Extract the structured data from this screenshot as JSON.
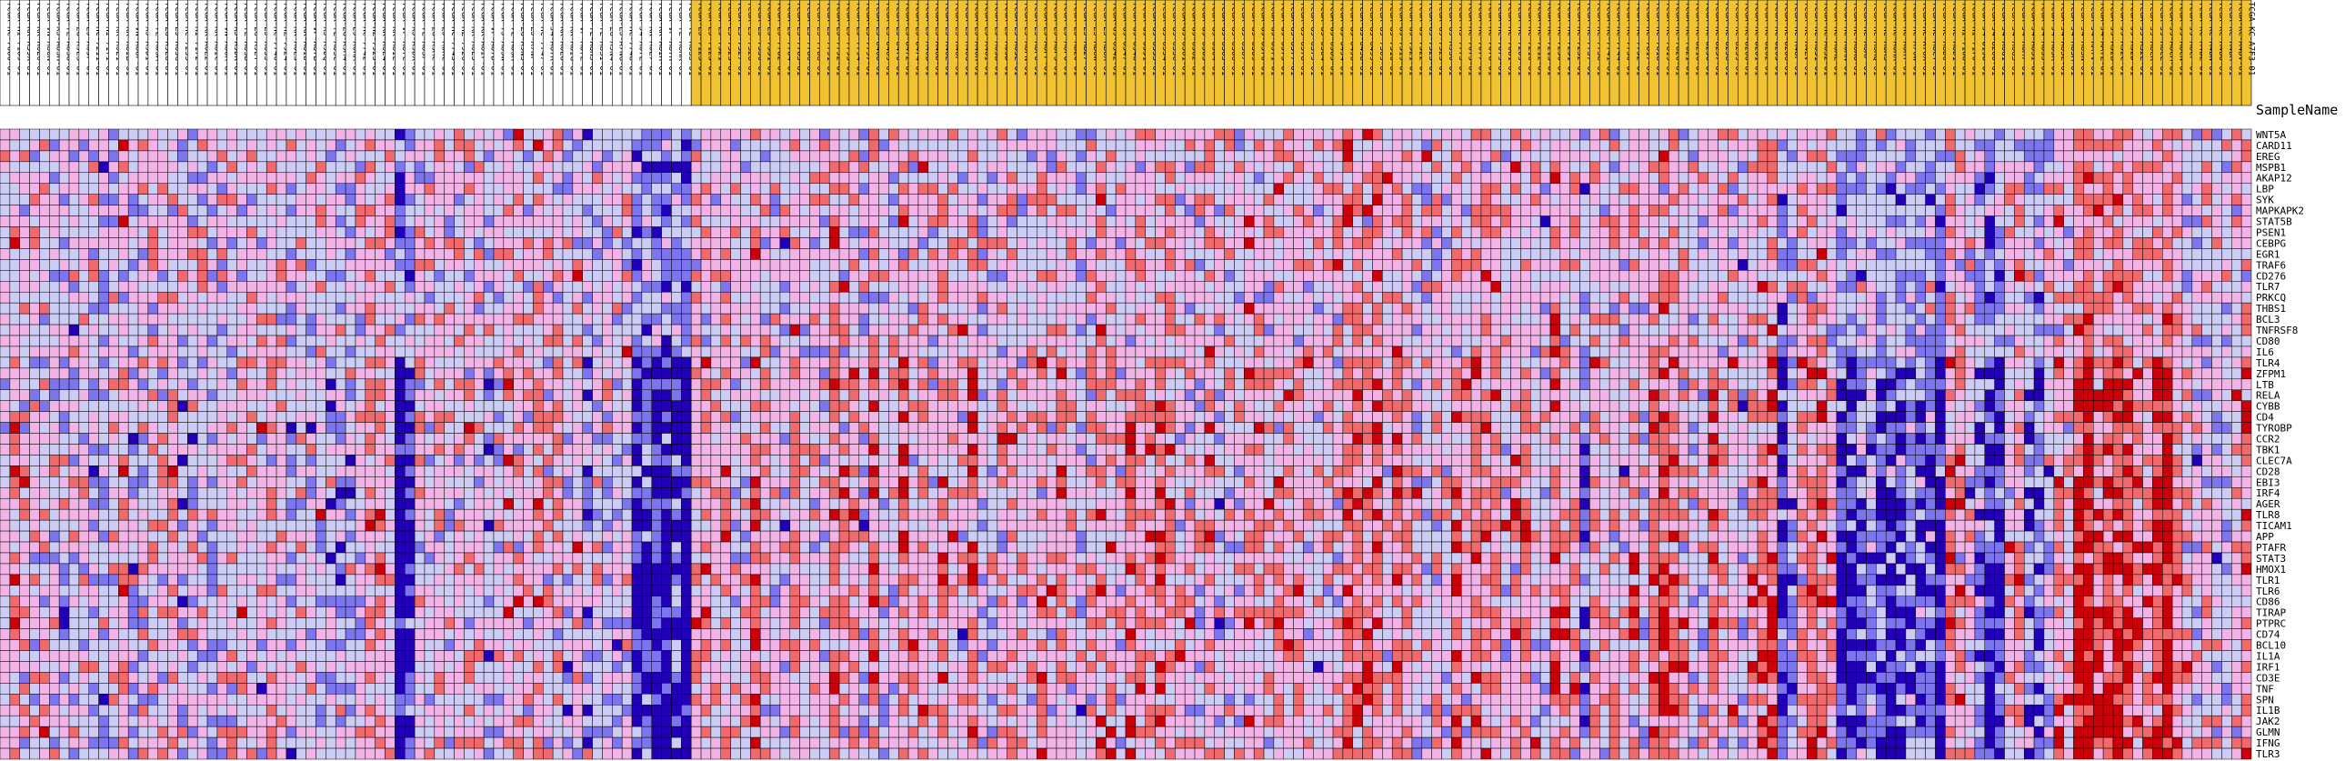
{
  "colors": {
    "header_even": "#ffffff",
    "header_odd": "#f1c232",
    "cell_border": "#000000",
    "scale": [
      "#2200b8",
      "#7c75ee",
      "#ccccf5",
      "#f2b3e6",
      "#f0696c",
      "#cc0008"
    ]
  },
  "column_header_label": "SampleName",
  "chart_data": {
    "type": "heatmap",
    "rows": [
      "WNT5A",
      "CARD11",
      "EREG",
      "MSPB1",
      "AKAP12",
      "LBP",
      "SYK",
      "MAPKAPK2",
      "STAT5B",
      "PSEN1",
      "CEBPG",
      "EGR1",
      "TRAF6",
      "CD276",
      "TLR7",
      "PRKCQ",
      "THBS1",
      "BCL3",
      "TNFRSF8",
      "CD80",
      "IL6",
      "TLR4",
      "ZFPM1",
      "LTB",
      "RELA",
      "CYBB",
      "CD4",
      "TYROBP",
      "CCR2",
      "TBK1",
      "CLEC7A",
      "CD28",
      "EBI3",
      "IRF4",
      "AGER",
      "TLR8",
      "TICAM1",
      "APP",
      "PTAFR",
      "STAT3",
      "HMOX1",
      "TLR1",
      "TLR6",
      "CD86",
      "TIRAP",
      "PTPRC",
      "CD74",
      "BCL10",
      "IL1A",
      "IRF1",
      "CD3E",
      "TNF",
      "SPN",
      "IL1B",
      "JAK2",
      "GLMN",
      "IFNG",
      "TLR3"
    ],
    "columns": [
      "TCGA-HC-7080-01",
      "TCGA-HI-7169-01",
      "TCGA-KK-A59X-01",
      "TCGA-KK-A6E0-01",
      "TCGA-VN-A88N-01",
      "TCGA-XJ-A83H-01",
      "TCGA-YL-A8S8-01",
      "TCGA-ZG-A9LS-01",
      "TCGA-EJ-A65F-01",
      "TCGA-HC-7211-01",
      "TCGA-HI-7171-01",
      "TCGA-KK-A6E1-01",
      "TCGA-KK-A8IB-01",
      "TCGA-VN-A88P-01",
      "TCGA-XJ-A9DI-01",
      "TCGA-YL-A8SA-01",
      "TCGA-ZG-A9LU-01",
      "TCGA-EJ-A65G-01",
      "TCGA-HC-7233-01",
      "TCGA-HI-7172-01",
      "TCGA-KK-A6E2-01",
      "TCGA-KK-A8IC-01",
      "TCGA-VN-A88R-01",
      "TCGA-XJ-A9DK-01",
      "TCGA-YL-A8SB-01",
      "TCGA-ZG-A9LY-01",
      "TCGA-EJ-A65J-01",
      "TCGA-HC-7740-01",
      "TCGA-HZ-7924-01",
      "TCGA-KK-A6E3-01",
      "TCGA-KK-A8ID-01",
      "TCGA-VP-A87B-01",
      "TCGA-XJ-A9DQ-01",
      "TCGA-YL-A8SC-01",
      "TCGA-ZG-A9M4-01",
      "TCGA-EJ-A6RA-01",
      "TCGA-HC-7742-01",
      "TCGA-HZ-7925-01",
      "TCGA-KK-A6E4-01",
      "TCGA-KK-A8IE-01",
      "TCGA-VP-A87C-01",
      "TCGA-XJ-A9DX-01",
      "TCGA-YL-A8SF-01",
      "TCGA-ZG-A9MC-01",
      "TCGA-EJ-A6RC-01",
      "TCGA-HC-7745-01",
      "TCGA-HZ-7926-01",
      "TCGA-KK-A6E5-01",
      "TCGA-KK-A8IF-01",
      "TCGA-VP-A87D-01",
      "TCGA-YJ-A8SW-01",
      "TCGA-YL-A8SH-01",
      "TCGA-ZG-A9N3-01",
      "TCGA-EJ-A7NF-01",
      "TCGA-HC-7747-01",
      "TCGA-J4-A67K-01",
      "TCGA-KK-A6E6-01",
      "TCGA-KK-A8IG-01",
      "TCGA-VP-A87E-01",
      "TCGA-YL-A8HJ-01",
      "TCGA-YL-A8SI-01",
      "TCGA-ZG-A9N4-01",
      "TCGA-EJ-A7NG-01",
      "TCGA-HC-7748-01",
      "TCGA-J4-A67L-01",
      "TCGA-KK-A6E7-01",
      "TCGA-KK-A8IH-01",
      "TCGA-VP-A87H-01",
      "TCGA-YL-A8HK-01",
      "TCGA-YL-A8SJ-01",
      "TCGA-EJ-7123-01",
      "TCGA-EJ-7125-01",
      "TCGA-EJ-7321-01",
      "TCGA-EJ-7325-01",
      "TCGA-EJ-7327-01",
      "TCGA-EJ-7328-01",
      "TCGA-EJ-7330-01",
      "TCGA-EJ-7331-01",
      "TCGA-EJ-7782-01",
      "TCGA-EJ-7784-01",
      "TCGA-EJ-7785-01",
      "TCGA-EJ-7786-01",
      "TCGA-EJ-7788-01",
      "TCGA-EJ-7791-01",
      "TCGA-EJ-7792-01",
      "TCGA-EJ-7793-01",
      "TCGA-EJ-7794-01",
      "TCGA-EJ-7797-01",
      "TCGA-EJ-8468-01",
      "TCGA-EJ-8469-01",
      "TCGA-EJ-8470-01",
      "TCGA-EJ-8472-01",
      "TCGA-EJ-8474-01",
      "TCGA-EJ-A46B-01",
      "TCGA-EJ-A46D-01",
      "TCGA-EJ-A46E-01",
      "TCGA-EJ-A46F-01",
      "TCGA-EJ-A46G-01",
      "TCGA-EJ-A46H-01",
      "TCGA-EJ-A46I-01",
      "TCGA-EJ-A65B-01",
      "TCGA-EJ-A65D-01",
      "TCGA-EJ-A65E-01",
      "TCGA-EJ-A8FN-01",
      "TCGA-EJ-A8FO-01",
      "TCGA-EJ-A8FP-01",
      "TCGA-EJ-A8FS-01",
      "TCGA-EJ-A8FU-01",
      "TCGA-EJ-AB20-01",
      "TCGA-EJ-AB27-01",
      "TCGA-EJ-AB8W-01",
      "TCGA-EJ-AB8X-01",
      "TCGA-G9-6342-01",
      "TCGA-G9-6347-01",
      "TCGA-G9-6348-01",
      "TCGA-G9-6351-01",
      "TCGA-G9-6353-01",
      "TCGA-G9-6354-01",
      "TCGA-G9-6356-01",
      "TCGA-G9-6361-01",
      "TCGA-G9-6362-01",
      "TCGA-G9-6363-01",
      "TCGA-G9-6364-01",
      "TCGA-G9-6365-01",
      "TCGA-G9-6366-01",
      "TCGA-G9-6367-01",
      "TCGA-G9-6369-01",
      "TCGA-G9-6370-01",
      "TCGA-G9-6371-01",
      "TCGA-G9-6373-01",
      "TCGA-G9-6377-01",
      "TCGA-G9-6378-01",
      "TCGA-G9-6379-01",
      "TCGA-G9-6384-01",
      "TCGA-G9-6385-01",
      "TCGA-G9-6494-01",
      "TCGA-G9-6496-01",
      "TCGA-G9-6498-01",
      "TCGA-G9-6499-01",
      "TCGA-G9-7509-01",
      "TCGA-G9-7510-01",
      "TCGA-G9-7519-01",
      "TCGA-G9-7521-01",
      "TCGA-G9-7522-01",
      "TCGA-G9-7523-01",
      "TCGA-G9-7525-01",
      "TCGA-G9-A9S0-01",
      "TCGA-H9-7775-01",
      "TCGA-HC-7075-01",
      "TCGA-HC-7077-01",
      "TCGA-HC-7078-01",
      "TCGA-HC-7079-01",
      "TCGA-HC-7081-01",
      "TCGA-HC-7209-01",
      "TCGA-HC-7210-01",
      "TCGA-HC-7212-01",
      "TCGA-HC-7213-01",
      "TCGA-HC-7230-01",
      "TCGA-HC-7231-01",
      "TCGA-HC-7232-01",
      "TCGA-HC-7737-01",
      "TCGA-HC-7738-01",
      "TCGA-HC-7741-01",
      "TCGA-HC-7744-01",
      "TCGA-HC-7750-01",
      "TCGA-HC-7752-01",
      "TCGA-HC-7817-01",
      "TCGA-HC-7818-01",
      "TCGA-HC-7819-01",
      "TCGA-HC-7820-01",
      "TCGA-HC-7821-01",
      "TCGA-HC-8216-01",
      "TCGA-HC-8256-01",
      "TCGA-HC-8257-01",
      "TCGA-HC-8258-01",
      "TCGA-HC-8259-01",
      "TCGA-HC-8260-01",
      "TCGA-HC-8261-01",
      "TCGA-HC-8262-01",
      "TCGA-HC-8265-01",
      "TCGA-HC-8266-01",
      "TCGA-HC-A48F-01",
      "TCGA-HC-A4ZV-01",
      "TCGA-HC-A631-01",
      "TCGA-HC-A632-01",
      "TCGA-HC-A6AL-01",
      "TCGA-HC-A6AN-01",
      "TCGA-HC-A6AO-01",
      "TCGA-HC-A6AP-01",
      "TCGA-HC-A6AQ-01",
      "TCGA-HC-A6AS-01",
      "TCGA-HC-A6HX-01",
      "TCGA-HC-A6HY-01",
      "TCGA-HC-A76W-01",
      "TCGA-HC-A76X-01",
      "TCGA-HC-A8CY-01",
      "TCGA-HC-A8D0-01",
      "TCGA-HC-A8D1-01",
      "TCGA-HI-7168-01",
      "TCGA-HI-7170-01",
      "TCGA-J4-8198-01",
      "TCGA-J4-8200-01",
      "TCGA-J4-A6G1-01",
      "TCGA-J4-A6G3-01",
      "TCGA-J4-A6M7-01",
      "TCGA-J4-A83I-01",
      "TCGA-J4-A83J-01",
      "TCGA-J4-A83K-01",
      "TCGA-J4-A83L-01",
      "TCGA-J4-A83M-01",
      "TCGA-J4-A83N-01",
      "TCGA-J4-AATV-01",
      "TCGA-J4-AATZ-01",
      "TCGA-J9-A52B-01",
      "TCGA-J9-A52C-01",
      "TCGA-J9-A52D-01",
      "TCGA-J9-A52E-01",
      "TCGA-J9-A8CK-01",
      "TCGA-J9-A8CL-01",
      "TCGA-J9-A8CM-01",
      "TCGA-J9-A8CN-01",
      "TCGA-J9-A8CP-01",
      "TCGA-KC-A4BL-01",
      "TCGA-KC-A4BN-01",
      "TCGA-KC-A4BO-01",
      "TCGA-KC-A4BR-01",
      "TCGA-KC-A4BV-01",
      "TCGA-KC-A7F3-01"
    ],
    "values": [],
    "value_range": [
      -2,
      2
    ],
    "highlight_start_index": 70
  }
}
